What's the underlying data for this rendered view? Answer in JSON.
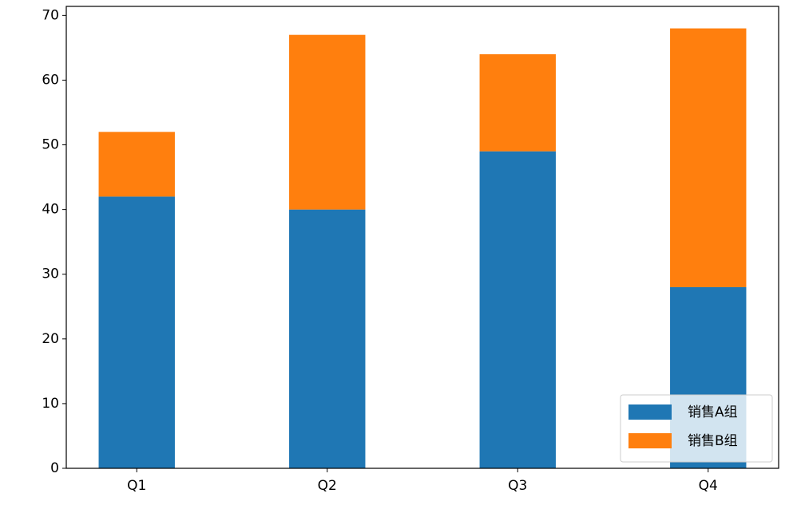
{
  "chart_data": {
    "type": "stacked_bar",
    "categories": [
      "Q1",
      "Q2",
      "Q3",
      "Q4"
    ],
    "series": [
      {
        "name": "销售A组",
        "color": "#1f77b4",
        "values": [
          42,
          40,
          49,
          28
        ]
      },
      {
        "name": "销售B组",
        "color": "#ff7f0e",
        "values": [
          10,
          27,
          15,
          40
        ]
      }
    ],
    "ylim": [
      0,
      71.4
    ],
    "yticks": [
      0,
      10,
      20,
      30,
      40,
      50,
      60,
      70
    ],
    "legend": "lower right"
  }
}
